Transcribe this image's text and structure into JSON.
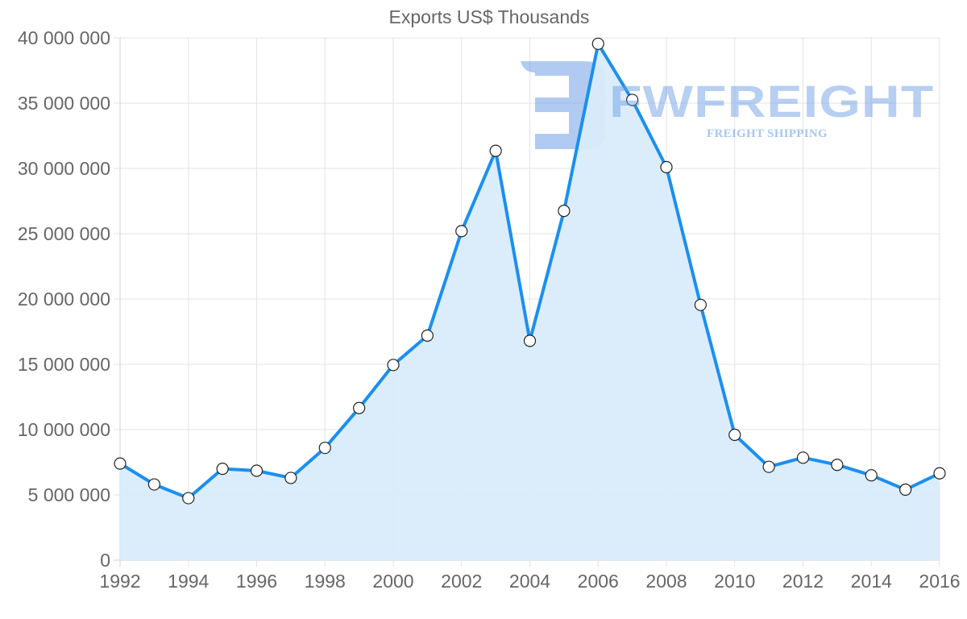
{
  "chart_data": {
    "type": "area",
    "title": "Exports US$ Thousands",
    "xlabel": "",
    "ylabel": "",
    "x": [
      1992,
      1993,
      1994,
      1995,
      1996,
      1997,
      1998,
      1999,
      2000,
      2001,
      2002,
      2003,
      2004,
      2005,
      2006,
      2007,
      2008,
      2009,
      2010,
      2011,
      2012,
      2013,
      2014,
      2015,
      2016
    ],
    "series": [
      {
        "name": "Exports US$ Thousands",
        "values": [
          7400000,
          5800000,
          4750000,
          7000000,
          6850000,
          6300000,
          8600000,
          11650000,
          14950000,
          17200000,
          25200000,
          31350000,
          16800000,
          26750000,
          39550000,
          35250000,
          30100000,
          19550000,
          9600000,
          7150000,
          7850000,
          7300000,
          6500000,
          5400000,
          6650000
        ]
      }
    ],
    "x_tick_labels": [
      "1992",
      "1994",
      "1996",
      "1998",
      "2000",
      "2002",
      "2004",
      "2006",
      "2008",
      "2010",
      "2012",
      "2014",
      "2016"
    ],
    "y_tick_labels": [
      "0",
      "5 000 000",
      "10 000 000",
      "15 000 000",
      "20 000 000",
      "25 000 000",
      "30 000 000",
      "35 000 000",
      "40 000 000"
    ],
    "y_ticks": [
      0,
      5000000,
      10000000,
      15000000,
      20000000,
      25000000,
      30000000,
      35000000,
      40000000
    ],
    "ylim": [
      0,
      40000000
    ],
    "xlim": [
      1992,
      2016
    ],
    "grid": true,
    "legend": "none",
    "colors": {
      "line": "#1b8ff0",
      "fill": "#d9ebfb",
      "marker_fill": "#ffffff",
      "marker_stroke": "#222222",
      "grid": "#e3e3e3",
      "axis_text": "#666666"
    }
  },
  "watermark": {
    "brand": "FWFREIGHT",
    "tagline": "FREIGHT SHIPPING"
  }
}
